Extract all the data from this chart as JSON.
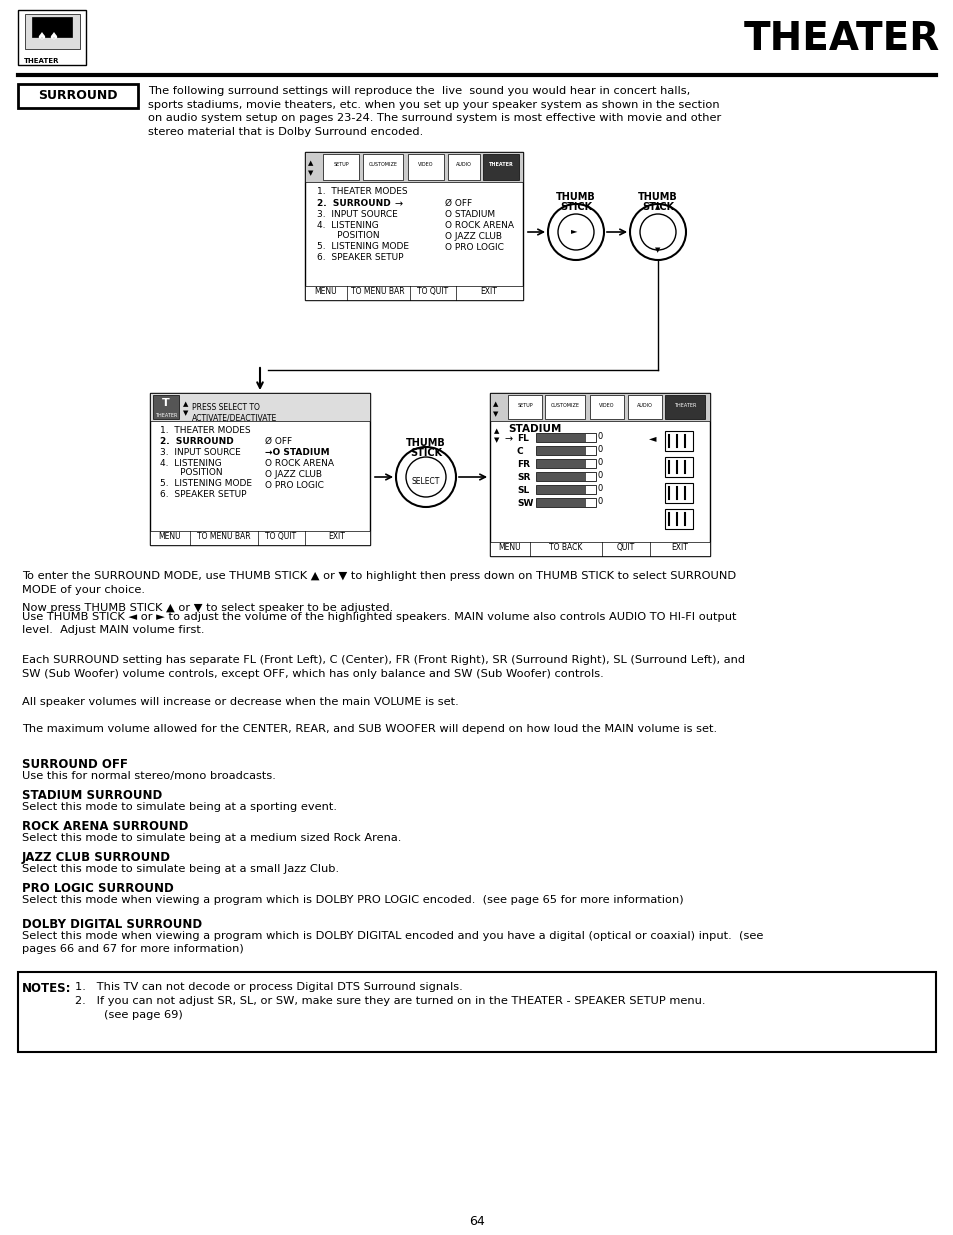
{
  "page_bg": "#ffffff",
  "title": "THEATER",
  "page_number": "64",
  "surround_intro_lines": [
    "The following surround settings will reproduce the  live  sound you would hear in concert halls,",
    "sports stadiums, movie theaters, etc. when you set up your speaker system as shown in the section",
    "on audio system setup on pages 23-24. The surround system is most effective with movie and other",
    "stereo material that is Dolby Surround encoded."
  ],
  "instructions_lines": [
    "To enter the SURROUND MODE, use THUMB STICK ▲ or ▼ to highlight then press down on THUMB STICK to select SURROUND",
    "MODE of your choice.",
    "Now press THUMB STICK ▲ or ▼ to select speaker to be adjusted.",
    "Use THUMB STICK ◄ or ► to adjust the volume of the highlighted speakers. MAIN volume also controls AUDIO TO HI-FI output",
    "level.  Adjust MAIN volume first."
  ],
  "para1_lines": [
    "Each SURROUND setting has separate FL (Front Left), C (Center), FR (Front Right), SR (Surround Right), SL (Surround Left), and",
    "SW (Sub Woofer) volume controls, except OFF, which has only balance and SW (Sub Woofer) controls."
  ],
  "para2": "All speaker volumes will increase or decrease when the main VOLUME is set.",
  "para3": "The maximum volume allowed for the CENTER, REAR, and SUB WOOFER will depend on how loud the MAIN volume is set.",
  "sections": [
    {
      "heading": "SURROUND OFF",
      "body": "Use this for normal stereo/mono broadcasts."
    },
    {
      "heading": "STADIUM SURROUND",
      "body": "Select this mode to simulate being at a sporting event."
    },
    {
      "heading": "ROCK ARENA SURROUND",
      "body": "Select this mode to simulate being at a medium sized Rock Arena."
    },
    {
      "heading": "JAZZ CLUB SURROUND",
      "body": "Select this mode to simulate being at a small Jazz Club."
    },
    {
      "heading": "PRO LOGIC SURROUND",
      "body": "Select this mode when viewing a program which is DOLBY PRO LOGIC encoded.  (see page 65 for more information)"
    },
    {
      "heading": "DOLBY DIGITAL SURROUND",
      "body": "Select this mode when viewing a program which is DOLBY DIGITAL encoded and you have a digital (optical or coaxial) input.  (see\npages 66 and 67 for more information)"
    }
  ],
  "note1": "1.   This TV can not decode or process Digital DTS Surround signals.",
  "note2": "2.   If you can not adjust SR, SL, or SW, make sure they are turned on in the THEATER - SPEAKER SETUP menu.",
  "note3": "        (see page 69)"
}
